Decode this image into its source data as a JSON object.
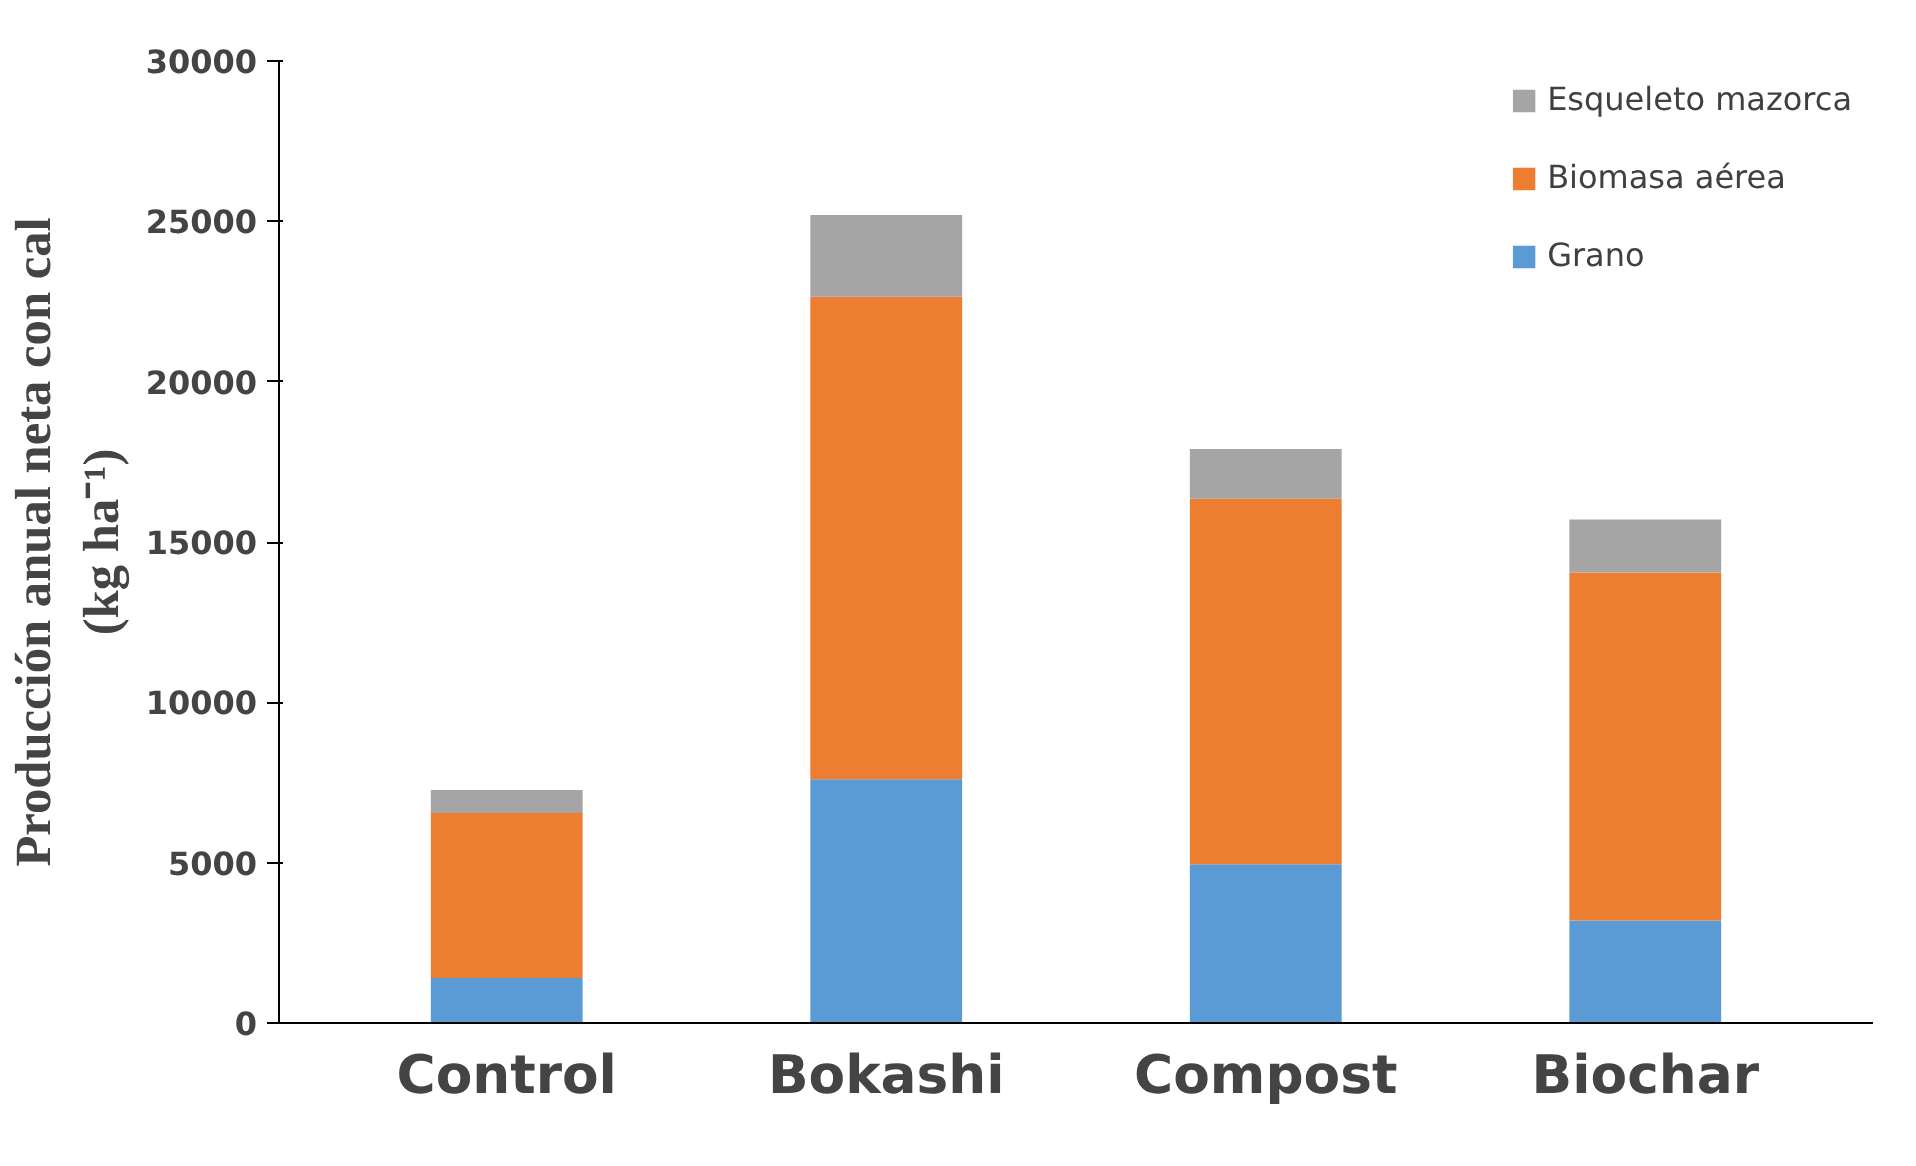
{
  "chart_data": {
    "type": "bar",
    "stacked": true,
    "ylabel": "Producción anual neta con cal\n(kg ha⁻¹)",
    "categories": [
      "Control",
      "Bokashi",
      "Compost",
      "Biochar"
    ],
    "series": [
      {
        "name": "Grano",
        "color": "#5b9bd5",
        "values": [
          1400,
          7600,
          4950,
          3200
        ]
      },
      {
        "name": "Biomasa aérea",
        "color": "#ed7d31",
        "values": [
          5150,
          15050,
          11400,
          10850
        ]
      },
      {
        "name": "Esqueleto mazorca",
        "color": "#a5a5a5",
        "values": [
          720,
          2550,
          1550,
          1650
        ]
      }
    ],
    "ylim": [
      0,
      30000
    ],
    "yticks": [
      0,
      5000,
      10000,
      15000,
      20000,
      25000,
      30000
    ],
    "grid": false,
    "legend": "top right"
  }
}
